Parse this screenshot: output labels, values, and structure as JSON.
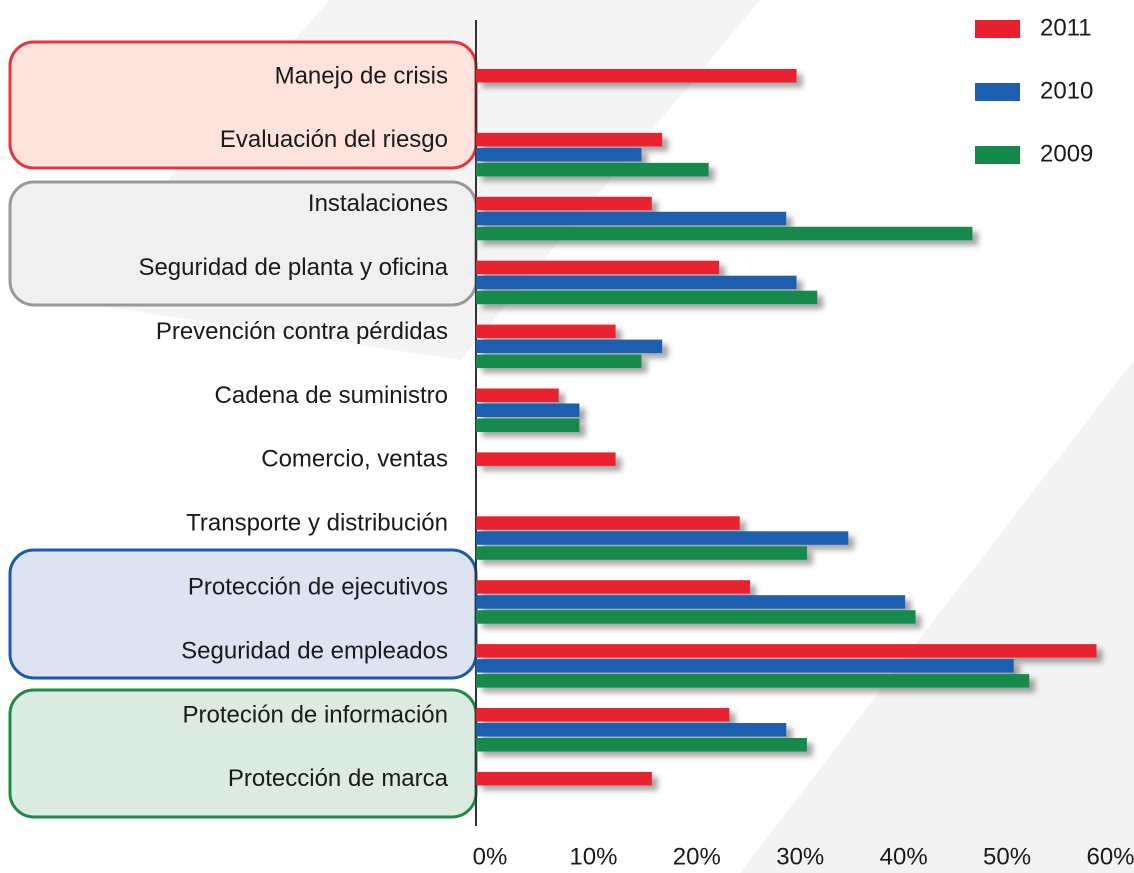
{
  "chart_data": {
    "type": "barh",
    "categories": [
      "Manejo de crisis",
      "Evaluación del riesgo",
      "Instalaciones",
      "Seguridad de planta y oficina",
      "Prevención contra pérdidas",
      "Cadena de suministro",
      "Comercio, ventas",
      "Transporte y distribución",
      "Protección de ejecutivos",
      "Seguridad de empleados",
      "Proteción de información",
      "Protección de marca"
    ],
    "series": [
      {
        "name": "2011",
        "color": "#e8202e",
        "values": [
          31,
          18,
          17,
          23.5,
          13.5,
          8,
          13.5,
          25.5,
          26.5,
          60,
          24.5,
          17
        ]
      },
      {
        "name": "2010",
        "color": "#1f5fb0",
        "values": [
          null,
          16,
          30,
          31,
          18,
          10,
          null,
          36,
          41.5,
          52,
          30,
          null
        ]
      },
      {
        "name": "2009",
        "color": "#138a4c",
        "values": [
          null,
          22.5,
          48,
          33,
          16,
          10,
          null,
          32,
          42.5,
          53.5,
          32,
          null
        ]
      }
    ],
    "xlim": [
      0,
      60
    ],
    "xticks": [
      {
        "value": 0,
        "label": "0%"
      },
      {
        "value": 10,
        "label": "10%"
      },
      {
        "value": 20,
        "label": "20%"
      },
      {
        "value": 30,
        "label": "30%"
      },
      {
        "value": 40,
        "label": "40%"
      },
      {
        "value": 50,
        "label": "50%"
      },
      {
        "value": 60,
        "label": "60%"
      }
    ],
    "legend": "top-right"
  }
}
